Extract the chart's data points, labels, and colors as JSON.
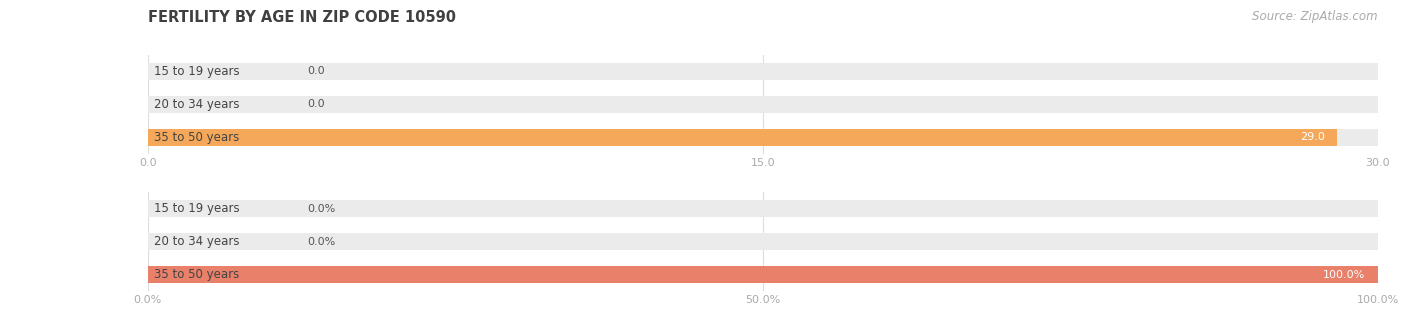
{
  "title": "FERTILITY BY AGE IN ZIP CODE 10590",
  "source": "Source: ZipAtlas.com",
  "top_chart": {
    "categories": [
      "15 to 19 years",
      "20 to 34 years",
      "35 to 50 years"
    ],
    "values": [
      0.0,
      0.0,
      29.0
    ],
    "xlim": [
      0,
      30.0
    ],
    "xticks": [
      0.0,
      15.0,
      30.0
    ],
    "xtick_labels": [
      "0.0",
      "15.0",
      "30.0"
    ],
    "bar_color": "#F5A85A",
    "bar_bg_color": "#EBEBEB"
  },
  "bottom_chart": {
    "categories": [
      "15 to 19 years",
      "20 to 34 years",
      "35 to 50 years"
    ],
    "values": [
      0.0,
      0.0,
      100.0
    ],
    "xlim": [
      0,
      100.0
    ],
    "xticks": [
      0.0,
      50.0,
      100.0
    ],
    "xtick_labels": [
      "0.0%",
      "50.0%",
      "100.0%"
    ],
    "bar_color": "#E8806A",
    "bar_bg_color": "#EBEBEB"
  },
  "title_fontsize": 10.5,
  "source_fontsize": 8.5,
  "label_fontsize": 8.5,
  "value_fontsize": 8.0,
  "tick_fontsize": 8.0,
  "bar_height": 0.52,
  "title_color": "#404040",
  "source_color": "#aaaaaa",
  "label_color": "#444444",
  "tick_color": "#aaaaaa",
  "value_color_inside": "#FFFFFF",
  "value_color_outside": "#555555",
  "background_color": "#FFFFFF",
  "grid_color": "#DDDDDD"
}
